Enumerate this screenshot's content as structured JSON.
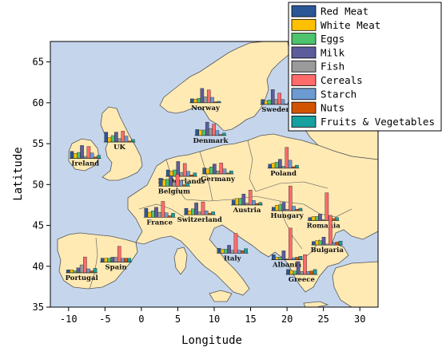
{
  "chart_data": {
    "type": "bar",
    "xlabel": "Longitude",
    "ylabel": "Latitude",
    "xlim": [
      -12.5,
      32.5
    ],
    "ylim": [
      35,
      67.5
    ],
    "x_ticks": [
      -10,
      -5,
      0,
      5,
      10,
      15,
      20,
      25,
      30
    ],
    "y_ticks": [
      35,
      40,
      45,
      50,
      55,
      60,
      65
    ],
    "x_tick_labels": [
      "-10",
      "-5",
      "0",
      "5",
      "10",
      "15",
      "20",
      "25",
      "30"
    ],
    "y_tick_labels": [
      "35",
      "40",
      "45",
      "50",
      "55",
      "60",
      "65"
    ],
    "legend_placement": "top-right",
    "categories": [
      "Red Meat",
      "White Meat",
      "Eggs",
      "Milk",
      "Fish",
      "Cereals",
      "Starch",
      "Nuts",
      "Fruits & Vegetables"
    ],
    "colors": [
      "#2b5797",
      "#ffc000",
      "#4cc36c",
      "#5c5c9c",
      "#9a9a9a",
      "#ff6b6b",
      "#6c9bd2",
      "#d35400",
      "#16a0a0"
    ],
    "map_colors": {
      "sea": "#c5d6ec",
      "land": "#ffeab4",
      "border": "#555555"
    },
    "series": [
      {
        "name": "Ireland",
        "lon": -7.7,
        "lat": 53.2,
        "values": [
          1.4,
          1.0,
          1.2,
          2.6,
          0.4,
          2.4,
          1.1,
          0.3,
          0.6
        ]
      },
      {
        "name": "UK",
        "lon": -3.0,
        "lat": 55.2,
        "values": [
          2.0,
          0.9,
          1.3,
          2.0,
          0.7,
          2.2,
          1.2,
          0.2,
          0.5
        ]
      },
      {
        "name": "Norway",
        "lon": 8.8,
        "lat": 60.0,
        "values": [
          0.8,
          0.7,
          0.9,
          2.9,
          1.2,
          2.6,
          1.1,
          0.2,
          0.3
        ]
      },
      {
        "name": "Sweden",
        "lon": 18.5,
        "lat": 59.8,
        "values": [
          1.0,
          0.7,
          0.9,
          3.0,
          1.0,
          2.3,
          1.0,
          0.1,
          0.4
        ]
      },
      {
        "name": "Denmark",
        "lon": 9.5,
        "lat": 56.0,
        "values": [
          1.2,
          1.1,
          1.1,
          2.7,
          1.4,
          2.3,
          1.0,
          0.2,
          0.5
        ]
      },
      {
        "name": "Netherlands",
        "lon": 5.5,
        "lat": 51.0,
        "values": [
          1.3,
          1.1,
          1.3,
          3.0,
          0.8,
          2.6,
          1.0,
          0.3,
          0.7
        ]
      },
      {
        "name": "Belgium",
        "lon": 4.5,
        "lat": 49.8,
        "values": [
          1.6,
          1.3,
          1.4,
          2.1,
          0.8,
          2.4,
          1.1,
          0.3,
          0.6
        ]
      },
      {
        "name": "Germany",
        "lon": 10.5,
        "lat": 51.3,
        "values": [
          1.2,
          1.0,
          1.4,
          2.0,
          0.6,
          2.2,
          1.0,
          0.2,
          0.6
        ]
      },
      {
        "name": "Poland",
        "lon": 19.5,
        "lat": 52.0,
        "values": [
          0.8,
          1.0,
          1.2,
          1.8,
          0.4,
          4.2,
          1.6,
          0.3,
          0.6
        ]
      },
      {
        "name": "France",
        "lon": 2.5,
        "lat": 46.0,
        "values": [
          1.8,
          1.0,
          1.3,
          2.0,
          1.0,
          3.2,
          0.9,
          0.3,
          0.8
        ]
      },
      {
        "name": "Switzerland",
        "lon": 8.0,
        "lat": 46.3,
        "values": [
          1.3,
          0.8,
          1.2,
          2.4,
          0.6,
          2.6,
          0.8,
          0.3,
          0.6
        ]
      },
      {
        "name": "Austria",
        "lon": 14.5,
        "lat": 47.5,
        "values": [
          1.0,
          1.3,
          1.3,
          2.2,
          0.4,
          3.0,
          0.9,
          0.3,
          0.5
        ]
      },
      {
        "name": "Hungary",
        "lon": 20.0,
        "lat": 46.8,
        "values": [
          0.7,
          1.1,
          1.2,
          1.7,
          0.3,
          5.0,
          0.9,
          0.3,
          0.5
        ]
      },
      {
        "name": "Romania",
        "lon": 25.0,
        "lat": 45.6,
        "values": [
          0.6,
          0.8,
          0.8,
          1.3,
          0.2,
          5.6,
          1.0,
          0.4,
          0.6
        ]
      },
      {
        "name": "Italy",
        "lon": 12.5,
        "lat": 41.6,
        "values": [
          1.0,
          0.8,
          0.8,
          1.6,
          0.6,
          4.0,
          0.6,
          0.5,
          0.9
        ]
      },
      {
        "name": "Albania",
        "lon": 20.0,
        "lat": 40.8,
        "values": [
          1.0,
          0.5,
          0.5,
          1.8,
          0.2,
          6.4,
          0.4,
          0.5,
          0.7
        ]
      },
      {
        "name": "Bulgaria",
        "lon": 25.5,
        "lat": 42.6,
        "values": [
          0.7,
          0.9,
          0.9,
          1.6,
          0.2,
          6.0,
          0.4,
          0.6,
          0.8
        ]
      },
      {
        "name": "Greece",
        "lon": 22.0,
        "lat": 39.0,
        "values": [
          1.0,
          0.8,
          0.7,
          2.6,
          0.6,
          4.0,
          0.6,
          0.7,
          1.0
        ]
      },
      {
        "name": "Portugal",
        "lon": -8.2,
        "lat": 39.2,
        "values": [
          0.6,
          0.6,
          0.4,
          1.0,
          1.6,
          3.2,
          0.8,
          0.4,
          0.9
        ]
      },
      {
        "name": "Spain",
        "lon": -3.5,
        "lat": 40.5,
        "values": [
          0.8,
          0.8,
          0.8,
          1.0,
          1.0,
          3.2,
          0.8,
          0.8,
          0.8
        ]
      }
    ],
    "grid": false
  }
}
